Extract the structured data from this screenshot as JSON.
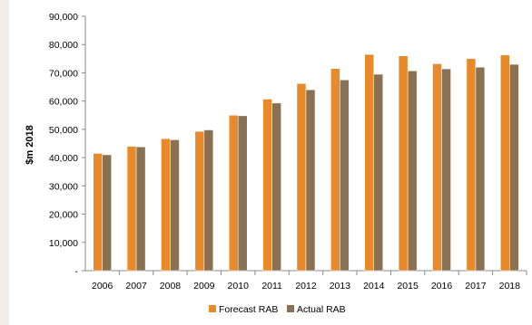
{
  "chart_data": {
    "type": "bar",
    "title": "",
    "xlabel": "",
    "ylabel": "$m 2018",
    "ylim": [
      0,
      90000
    ],
    "yticks": [
      0,
      10000,
      20000,
      30000,
      40000,
      50000,
      60000,
      70000,
      80000,
      90000
    ],
    "ytick_labels": [
      "-",
      "10,000",
      "20,000",
      "30,000",
      "40,000",
      "50,000",
      "60,000",
      "70,000",
      "80,000",
      "90,000"
    ],
    "categories": [
      "2006",
      "2007",
      "2008",
      "2009",
      "2010",
      "2011",
      "2012",
      "2013",
      "2014",
      "2015",
      "2016",
      "2017",
      "2018"
    ],
    "series": [
      {
        "name": "Forecast RAB",
        "color": "#e8892a",
        "values": [
          41500,
          44000,
          46700,
          49300,
          55000,
          60700,
          66200,
          71500,
          76500,
          76000,
          73200,
          75000,
          76300
        ]
      },
      {
        "name": "Actual RAB",
        "color": "#8a7152",
        "values": [
          41000,
          43800,
          46300,
          49800,
          54800,
          59300,
          64000,
          67500,
          69500,
          70700,
          71400,
          72000,
          73000
        ]
      }
    ],
    "grid": false,
    "legend_position": "bottom"
  }
}
